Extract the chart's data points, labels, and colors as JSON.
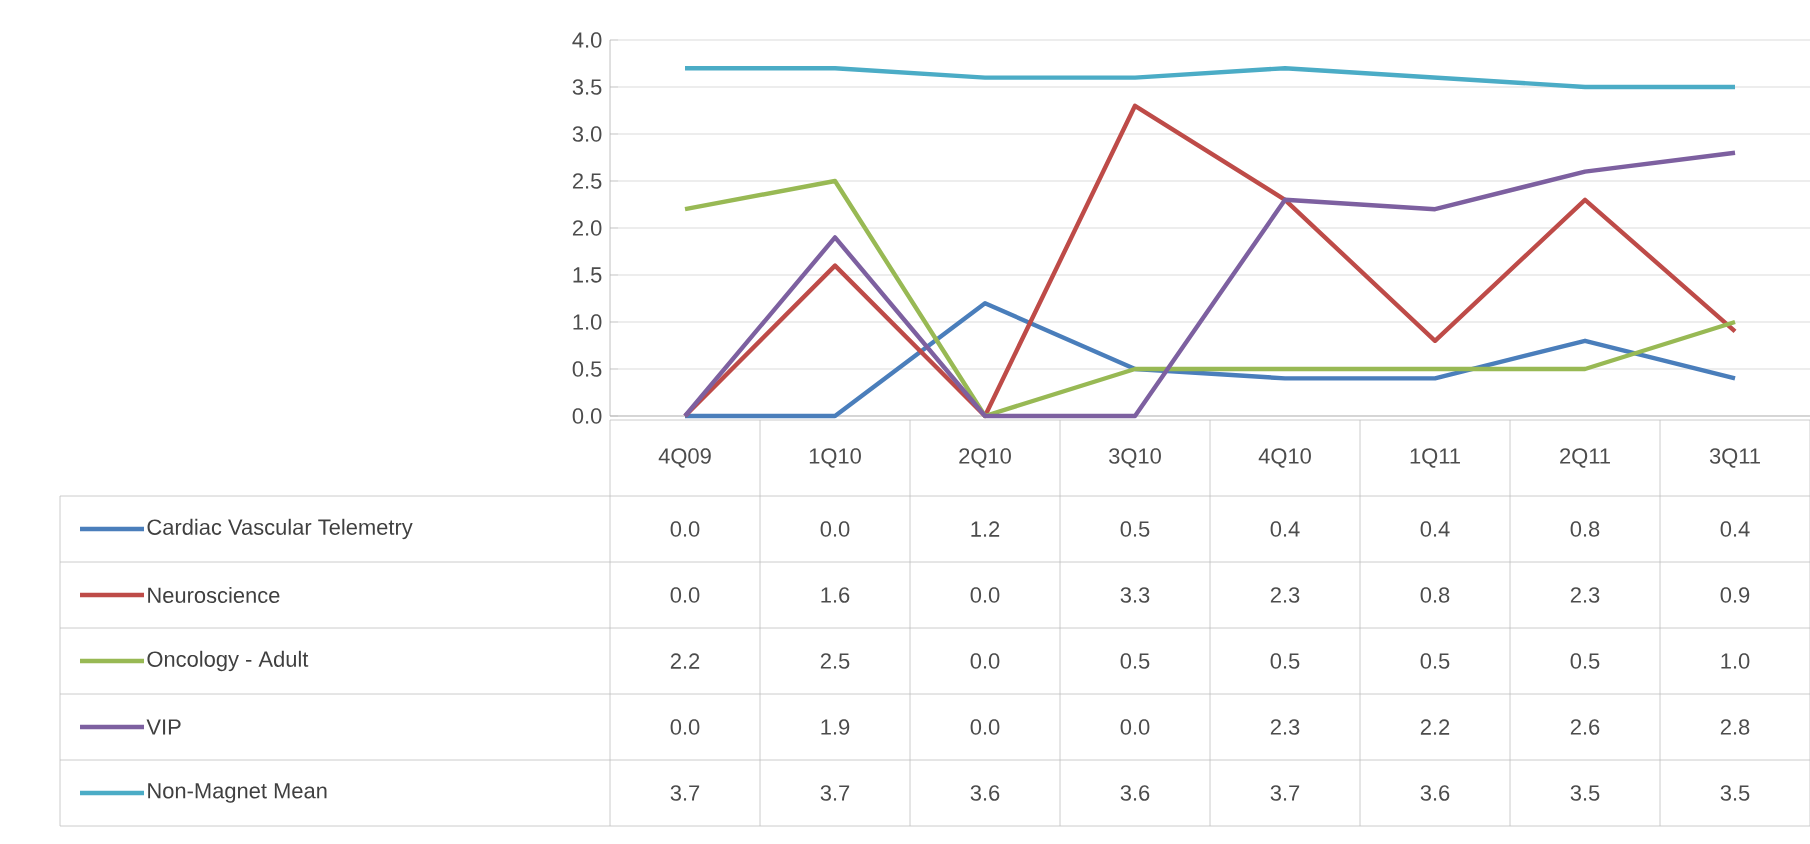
{
  "chart_data": {
    "type": "line",
    "categories": [
      "4Q09",
      "1Q10",
      "2Q10",
      "3Q10",
      "4Q10",
      "1Q11",
      "2Q11",
      "3Q11"
    ],
    "series": [
      {
        "name": "Cardiac Vascular Telemetry",
        "color": "#4a7ebb",
        "values": [
          0.0,
          0.0,
          1.2,
          0.5,
          0.4,
          0.4,
          0.8,
          0.4
        ],
        "value_labels": [
          "0.0",
          "0.0",
          "1.2",
          "0.5",
          "0.4",
          "0.4",
          "0.8",
          "0.4"
        ]
      },
      {
        "name": "Neuroscience",
        "color": "#be4b48",
        "values": [
          0.0,
          1.6,
          0.0,
          3.3,
          2.3,
          0.8,
          2.3,
          0.9
        ],
        "value_labels": [
          "0.0",
          "1.6",
          "0.0",
          "3.3",
          "2.3",
          "0.8",
          "2.3",
          "0.9"
        ]
      },
      {
        "name": "Oncology - Adult",
        "color": "#98b954",
        "values": [
          2.2,
          2.5,
          0.0,
          0.5,
          0.5,
          0.5,
          0.5,
          1.0
        ],
        "value_labels": [
          "2.2",
          "2.5",
          "0.0",
          "0.5",
          "0.5",
          "0.5",
          "0.5",
          "1.0"
        ]
      },
      {
        "name": "VIP",
        "color": "#7d60a0",
        "values": [
          0.0,
          1.9,
          0.0,
          0.0,
          2.3,
          2.2,
          2.6,
          2.8
        ],
        "value_labels": [
          "0.0",
          "1.9",
          "0.0",
          "0.0",
          "2.3",
          "2.2",
          "2.6",
          "2.8"
        ]
      },
      {
        "name": "Non-Magnet Mean",
        "color": "#4bacc6",
        "values": [
          3.7,
          3.7,
          3.6,
          3.6,
          3.7,
          3.6,
          3.5,
          3.5
        ],
        "value_labels": [
          "3.7",
          "3.7",
          "3.6",
          "3.6",
          "3.7",
          "3.6",
          "3.5",
          "3.5"
        ]
      }
    ],
    "ylim": [
      0,
      4
    ],
    "yticks": [
      {
        "value": 0,
        "label": "0.0"
      },
      0.5,
      {
        "value": 1,
        "label": "1.0"
      },
      1.5,
      {
        "value": 2,
        "label": "2.0"
      },
      2.5,
      {
        "value": 3,
        "label": "3.0"
      },
      3.5,
      {
        "value": 4,
        "label": "4.0"
      }
    ],
    "grid": "y",
    "legend": "bottom left",
    "marker": "none",
    "line_style": "solid"
  }
}
